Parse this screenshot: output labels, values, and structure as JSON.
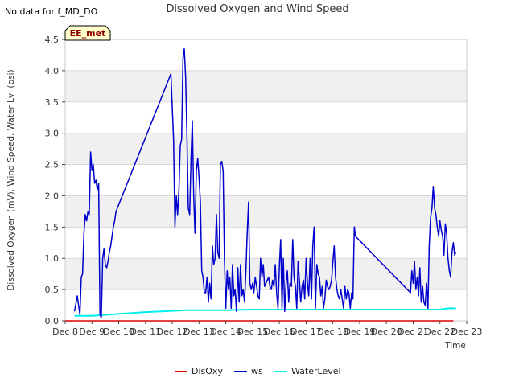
{
  "header": {
    "status_note": "No data for f_MD_DO",
    "station_badge": "EE_met"
  },
  "colors": {
    "band": "#f0f0f0",
    "grid": "#d8d8d8",
    "DisOxy": "#dd0000",
    "ws": "#0000cc",
    "WaterLevel": "#00eeee",
    "badge_bg": "#ffffcc",
    "badge_text": "#8b0000"
  },
  "chart_data": {
    "type": "line",
    "title": "Dissolved Oxygen and Wind Speed",
    "xlabel": "Time",
    "ylabel": "Dissolved Oxygen (mV), Wind Speed, Water Lvl (psi)",
    "xlim": [
      8,
      23
    ],
    "ylim": [
      0,
      4.5
    ],
    "x_ticks": [
      8,
      9,
      10,
      11,
      12,
      13,
      14,
      15,
      16,
      17,
      18,
      19,
      20,
      21,
      22,
      23
    ],
    "x_tick_labels": [
      "Dec 8",
      "Dec 9",
      "Dec 10",
      "Dec 11",
      "Dec 12",
      "Dec 13",
      "Dec 14",
      "Dec 15",
      "Dec 16",
      "Dec 17",
      "Dec 18",
      "Dec 19",
      "Dec 20",
      "Dec 21",
      "Dec 22",
      "Dec 23"
    ],
    "y_ticks": [
      0.0,
      0.5,
      1.0,
      1.5,
      2.0,
      2.5,
      3.0,
      3.5,
      4.0,
      4.5
    ],
    "y_tick_labels": [
      "0.0",
      "0.5",
      "1.0",
      "1.5",
      "2.0",
      "2.5",
      "3.0",
      "3.5",
      "4.0",
      "4.5"
    ],
    "legend": {
      "position": "bottom-center",
      "entries": [
        "DisOxy",
        "ws",
        "WaterLevel"
      ]
    },
    "series": [
      {
        "name": "DisOxy",
        "x": [
          8.0,
          22.5
        ],
        "y": [
          0.0,
          0.0
        ]
      },
      {
        "name": "ws",
        "x": [
          8.35,
          8.45,
          8.55,
          8.6,
          8.65,
          8.7,
          8.75,
          8.8,
          8.85,
          8.9,
          8.95,
          9.0,
          9.05,
          9.1,
          9.15,
          9.2,
          9.25,
          9.3,
          9.35,
          9.4,
          9.45,
          9.5,
          9.55,
          9.6,
          9.65,
          9.7,
          9.75,
          9.8,
          9.85,
          9.9,
          11.95,
          12.0,
          12.05,
          12.1,
          12.15,
          12.2,
          12.25,
          12.3,
          12.35,
          12.4,
          12.45,
          12.5,
          12.55,
          12.6,
          12.65,
          12.7,
          12.75,
          12.8,
          12.85,
          12.9,
          12.95,
          13.0,
          13.05,
          13.1,
          13.15,
          13.2,
          13.25,
          13.3,
          13.35,
          13.4,
          13.45,
          13.5,
          13.55,
          13.6,
          13.65,
          13.7,
          13.75,
          13.8,
          13.85,
          13.9,
          13.95,
          14.0,
          14.05,
          14.1,
          14.15,
          14.2,
          14.25,
          14.3,
          14.35,
          14.4,
          14.45,
          14.5,
          14.55,
          14.6,
          14.65,
          14.7,
          14.75,
          14.8,
          14.85,
          14.9,
          14.95,
          15.0,
          15.05,
          15.1,
          15.15,
          15.2,
          15.25,
          15.3,
          15.35,
          15.4,
          15.45,
          15.5,
          15.55,
          15.6,
          15.65,
          15.7,
          15.75,
          15.8,
          15.85,
          15.9,
          15.95,
          16.0,
          16.05,
          16.1,
          16.15,
          16.2,
          16.25,
          16.3,
          16.35,
          16.4,
          16.45,
          16.5,
          16.55,
          16.6,
          16.65,
          16.7,
          16.75,
          16.8,
          16.85,
          16.9,
          16.95,
          17.0,
          17.05,
          17.1,
          17.15,
          17.2,
          17.25,
          17.3,
          17.35,
          17.4,
          17.45,
          17.5,
          17.55,
          17.6,
          17.65,
          17.7,
          17.75,
          17.8,
          17.85,
          17.9,
          17.95,
          18.0,
          18.05,
          18.1,
          18.15,
          18.2,
          18.25,
          18.3,
          18.35,
          18.4,
          18.45,
          18.5,
          18.55,
          18.6,
          18.65,
          18.7,
          18.75,
          18.8,
          18.85,
          20.9,
          20.95,
          21.0,
          21.05,
          21.1,
          21.15,
          21.2,
          21.25,
          21.3,
          21.35,
          21.4,
          21.45,
          21.5,
          21.55,
          21.6,
          21.65,
          21.7,
          21.75,
          21.8,
          21.85,
          21.9,
          21.95,
          22.0,
          22.05,
          22.1,
          22.15,
          22.2,
          22.25,
          22.3,
          22.35,
          22.4,
          22.45,
          22.5,
          22.55,
          22.6
        ],
        "y": [
          0.15,
          0.4,
          0.1,
          0.7,
          0.75,
          1.4,
          1.7,
          1.6,
          1.75,
          1.7,
          2.7,
          2.4,
          2.5,
          2.2,
          2.25,
          2.1,
          2.2,
          0.1,
          0.05,
          1.0,
          1.15,
          0.9,
          0.85,
          0.95,
          1.1,
          1.2,
          1.35,
          1.5,
          1.6,
          1.75,
          3.95,
          3.4,
          2.9,
          1.5,
          2.0,
          1.7,
          2.1,
          2.8,
          2.9,
          4.2,
          4.35,
          3.9,
          2.9,
          1.8,
          1.7,
          2.6,
          3.2,
          2.0,
          1.4,
          2.4,
          2.6,
          2.3,
          1.9,
          0.8,
          0.7,
          0.45,
          0.45,
          0.7,
          0.3,
          0.6,
          0.35,
          1.2,
          0.9,
          1.0,
          1.7,
          1.1,
          1.0,
          2.5,
          2.55,
          2.4,
          1.0,
          0.2,
          0.8,
          0.5,
          0.7,
          0.2,
          0.9,
          0.4,
          0.5,
          0.15,
          0.85,
          0.3,
          0.9,
          0.4,
          0.5,
          0.3,
          0.8,
          1.4,
          1.9,
          0.6,
          0.5,
          0.6,
          0.45,
          0.7,
          0.55,
          0.4,
          0.35,
          1.0,
          0.7,
          0.9,
          0.55,
          0.6,
          0.65,
          0.7,
          0.55,
          0.5,
          0.65,
          0.55,
          0.9,
          0.45,
          0.2,
          0.85,
          1.3,
          0.2,
          1.0,
          0.15,
          0.6,
          0.8,
          0.3,
          0.6,
          0.55,
          1.3,
          0.7,
          0.55,
          0.2,
          0.95,
          0.65,
          0.3,
          0.55,
          0.65,
          0.35,
          1.0,
          0.6,
          0.4,
          1.0,
          0.35,
          1.2,
          1.5,
          0.2,
          0.9,
          0.75,
          0.7,
          0.4,
          0.55,
          0.2,
          0.35,
          0.65,
          0.55,
          0.5,
          0.55,
          0.65,
          0.95,
          1.2,
          0.7,
          0.5,
          0.4,
          0.35,
          0.5,
          0.35,
          0.2,
          0.55,
          0.35,
          0.5,
          0.45,
          0.2,
          0.45,
          0.35,
          1.5,
          1.35,
          0.45,
          0.8,
          0.6,
          0.95,
          0.5,
          0.7,
          0.4,
          0.85,
          0.3,
          0.55,
          0.3,
          0.25,
          0.6,
          0.2,
          1.2,
          1.65,
          1.8,
          2.15,
          1.8,
          1.7,
          1.5,
          1.35,
          1.6,
          1.45,
          1.35,
          1.05,
          1.55,
          1.4,
          1.0,
          0.8,
          0.7,
          1.1,
          1.25,
          1.05,
          1.1
        ]
      },
      {
        "name": "WaterLevel",
        "x": [
          8.35,
          9.0,
          10.0,
          11.0,
          12.0,
          12.5,
          13.0,
          14.0,
          15.0,
          16.0,
          17.0,
          18.0,
          19.0,
          20.0,
          21.0,
          21.5,
          22.0,
          22.3,
          22.6
        ],
        "y": [
          0.08,
          0.08,
          0.11,
          0.14,
          0.16,
          0.17,
          0.17,
          0.17,
          0.18,
          0.18,
          0.18,
          0.18,
          0.18,
          0.18,
          0.18,
          0.18,
          0.18,
          0.2,
          0.2
        ]
      }
    ]
  }
}
